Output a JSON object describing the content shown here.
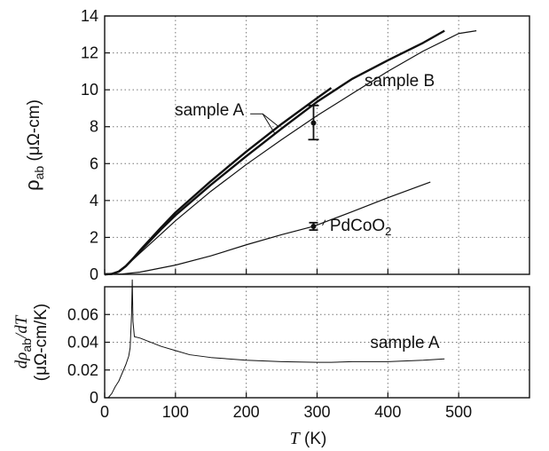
{
  "chart_data": [
    {
      "type": "line",
      "panel": "top",
      "ylabel": {
        "main": "ρ",
        "sub": "ab",
        "unit": " (μΩ-cm)"
      },
      "xlim": [
        0,
        600
      ],
      "ylim": [
        0,
        14
      ],
      "yticks": [
        "0",
        "2",
        "4",
        "6",
        "8",
        "10",
        "12",
        "14"
      ],
      "grid": true,
      "series": [
        {
          "name": "sample A",
          "width": 2.4,
          "x": [
            0,
            10,
            20,
            30,
            40,
            50,
            60,
            80,
            100,
            150,
            200,
            250,
            300,
            350,
            400,
            450,
            480
          ],
          "y": [
            0,
            0.02,
            0.15,
            0.45,
            0.85,
            1.25,
            1.65,
            2.45,
            3.2,
            4.85,
            6.4,
            7.9,
            9.35,
            10.6,
            11.6,
            12.55,
            13.2
          ]
        },
        {
          "name": "sample A",
          "width": 2.4,
          "x": [
            0,
            10,
            20,
            30,
            40,
            50,
            60,
            80,
            100,
            150,
            200,
            250,
            300,
            320
          ],
          "y": [
            0,
            0.02,
            0.15,
            0.45,
            0.85,
            1.3,
            1.72,
            2.55,
            3.35,
            5.05,
            6.65,
            8.15,
            9.55,
            10.1
          ]
        },
        {
          "name": "sample B",
          "width": 1.2,
          "x": [
            0,
            10,
            20,
            30,
            40,
            50,
            60,
            80,
            100,
            150,
            200,
            250,
            300,
            350,
            400,
            450,
            500,
            525
          ],
          "y": [
            0,
            0.02,
            0.15,
            0.42,
            0.8,
            1.15,
            1.5,
            2.2,
            2.9,
            4.5,
            5.95,
            7.3,
            8.6,
            9.8,
            11.0,
            12.1,
            13.05,
            13.2
          ]
        },
        {
          "name": "PdCoO2",
          "width": 1.2,
          "x": [
            0,
            25,
            50,
            100,
            150,
            200,
            250,
            295,
            350,
            400,
            460
          ],
          "y": [
            0,
            0.02,
            0.12,
            0.5,
            1.0,
            1.6,
            2.15,
            2.6,
            3.4,
            4.15,
            5.0
          ]
        }
      ],
      "error_bars": [
        {
          "x": 295,
          "y": 8.2,
          "lo": 7.3,
          "hi": 9.15,
          "cap": 6
        },
        {
          "x": 295,
          "y": 2.6,
          "lo": 2.4,
          "hi": 2.8,
          "cap": 5
        }
      ],
      "annotations": [
        {
          "text": "sample A",
          "at": [
            148,
            8.6
          ]
        },
        {
          "text": "sample B",
          "at": [
            367,
            10.2
          ]
        },
        {
          "text": "PdCoO",
          "sub": "2",
          "at": [
            318,
            2.35
          ]
        }
      ]
    },
    {
      "type": "line",
      "panel": "bottom",
      "ylabel": {
        "line1": "dρ",
        "line1_sub": "ab",
        "line1_tail": "/dT",
        "line2": "(μΩ-cm/K)"
      },
      "xlabel": {
        "var": "T",
        "unit": " (K)"
      },
      "xlim": [
        0,
        600
      ],
      "ylim": [
        0,
        0.08
      ],
      "xticks": [
        "0",
        "100",
        "200",
        "300",
        "400",
        "500"
      ],
      "yticks": [
        "0",
        "0.02",
        "0.04",
        "0.06"
      ],
      "grid": true,
      "series": [
        {
          "name": "sample A",
          "width": 1.0,
          "x": [
            5,
            10,
            15,
            20,
            25,
            30,
            34,
            36,
            38,
            39,
            40,
            42,
            50,
            60,
            80,
            100,
            120,
            150,
            200,
            250,
            300,
            320,
            350,
            400,
            450,
            480
          ],
          "y": [
            0.0,
            0.003,
            0.008,
            0.012,
            0.018,
            0.024,
            0.03,
            0.036,
            0.06,
            0.085,
            0.055,
            0.044,
            0.043,
            0.041,
            0.037,
            0.034,
            0.031,
            0.029,
            0.027,
            0.026,
            0.0255,
            0.0255,
            0.026,
            0.026,
            0.027,
            0.028
          ]
        }
      ],
      "annotations": [
        {
          "text": "sample A",
          "at": [
            375,
            0.036
          ]
        }
      ]
    }
  ]
}
